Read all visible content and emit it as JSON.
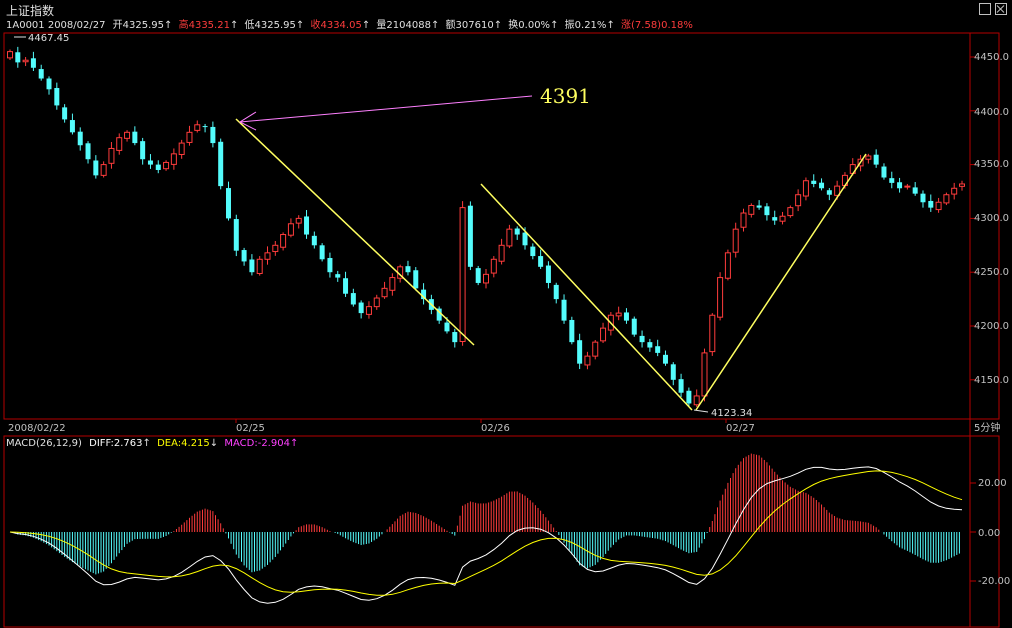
{
  "window": {
    "title": "上证指数",
    "max_icon": "maximize-icon",
    "close_icon": "close-icon"
  },
  "info": {
    "code_date": "1A0001 2008/02/27",
    "open": "开4325.95",
    "high": "高4335.21",
    "low": "低4325.95",
    "close": "收4334.05",
    "volume": "量2104088",
    "amount": "额307610",
    "turnover": "换0.00%",
    "amplitude": "振0.21%",
    "change": "涨(7.58)0.18%",
    "arrow_up": "↑",
    "arrow_down": "↓"
  },
  "price_panel": {
    "high_marker": "4467.45",
    "low_marker": "4123.34",
    "annotation": "4391",
    "y_ticks": [
      "4450.0",
      "4400.0",
      "4350.0",
      "4300.0",
      "4250.0",
      "4200.0",
      "4150.0"
    ],
    "x_labels": [
      "2008/02/22",
      "02/25",
      "02/26",
      "02/27"
    ],
    "period": "5分钟"
  },
  "macd_panel": {
    "name": "MACD(26,12,9)",
    "diff": "DIFF:2.763",
    "dea": "DEA:4.215",
    "macd": "MACD:-2.904",
    "y_ticks": [
      "20.00",
      "0.00",
      "-20.00"
    ]
  },
  "colors": {
    "up": "#ff3c3c",
    "down": "#54fcfc",
    "frame": "#b40000",
    "yellow_line": "#ffff60",
    "annotation_line": "#ff80ff",
    "text_white": "#e0e0e0",
    "diff_line": "#ffffff",
    "dea_line": "#ffff00"
  },
  "chart_data": [
    {
      "type": "candlestick",
      "title": "上证指数",
      "period": "5分钟",
      "ylim": [
        4100,
        4480
      ],
      "y_ticks": [
        4150,
        4200,
        4250,
        4300,
        4350,
        4400,
        4450
      ],
      "x_day_labels": [
        "2008/02/22",
        "02/25",
        "02/26",
        "02/27"
      ],
      "close_path": [
        4455,
        4445,
        4447,
        4440,
        4430,
        4420,
        4405,
        4392,
        4380,
        4368,
        4355,
        4340,
        4350,
        4365,
        4375,
        4380,
        4370,
        4355,
        4350,
        4345,
        4352,
        4360,
        4370,
        4380,
        4387,
        4385,
        4370,
        4330,
        4300,
        4270,
        4260,
        4250,
        4262,
        4268,
        4275,
        4285,
        4295,
        4300,
        4285,
        4275,
        4262,
        4250,
        4245,
        4230,
        4220,
        4212,
        4218,
        4226,
        4235,
        4245,
        4255,
        4250,
        4235,
        4225,
        4215,
        4205,
        4195,
        4185,
        4310,
        4255,
        4240,
        4248,
        4262,
        4275,
        4290,
        4285,
        4275,
        4265,
        4255,
        4240,
        4225,
        4205,
        4185,
        4165,
        4172,
        4185,
        4198,
        4210,
        4212,
        4205,
        4192,
        4185,
        4180,
        4175,
        4165,
        4150,
        4138,
        4128,
        4135,
        4175,
        4210,
        4245,
        4268,
        4290,
        4305,
        4312,
        4310,
        4303,
        4298,
        4302,
        4310,
        4322,
        4335,
        4332,
        4328,
        4322,
        4330,
        4340,
        4350,
        4355,
        4358,
        4350,
        4338,
        4333,
        4328,
        4330,
        4323,
        4315,
        4310,
        4315,
        4322,
        4328,
        4332
      ],
      "annotations": {
        "high_marker": 4467.45,
        "low_marker": 4123.34,
        "label": "4391"
      }
    },
    {
      "type": "bar+line",
      "title": "MACD(26,12,9)",
      "series": [
        {
          "name": "DIFF",
          "last": 2.763
        },
        {
          "name": "DEA",
          "last": 4.215
        },
        {
          "name": "MACD",
          "last": -2.904
        }
      ],
      "ylim": [
        -38,
        38
      ],
      "y_ticks": [
        -20,
        0,
        20
      ]
    }
  ]
}
